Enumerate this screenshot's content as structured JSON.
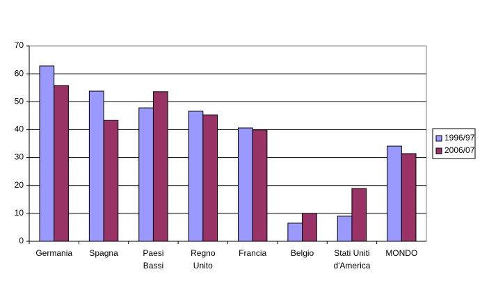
{
  "chart_data": {
    "type": "bar",
    "categories": [
      "Germania",
      "Spagna",
      [
        "Paesi",
        "Bassi"
      ],
      [
        "Regno",
        "Unito"
      ],
      "Francia",
      "Belgio",
      [
        "Stati Uniti",
        "d'America"
      ],
      "MONDO"
    ],
    "series": [
      {
        "name": "1996/97",
        "color": "#9999ff",
        "values": [
          62.8,
          53.8,
          47.8,
          46.6,
          40.6,
          6.5,
          9,
          34.1
        ]
      },
      {
        "name": "2006/07",
        "color": "#993366",
        "values": [
          55.8,
          43.3,
          53.6,
          45.3,
          39.9,
          10,
          18.9,
          31.4
        ]
      }
    ],
    "ylim": [
      0,
      70
    ],
    "yticks": [
      0,
      10,
      20,
      30,
      40,
      50,
      60,
      70
    ],
    "grid": true,
    "legend": "right"
  }
}
